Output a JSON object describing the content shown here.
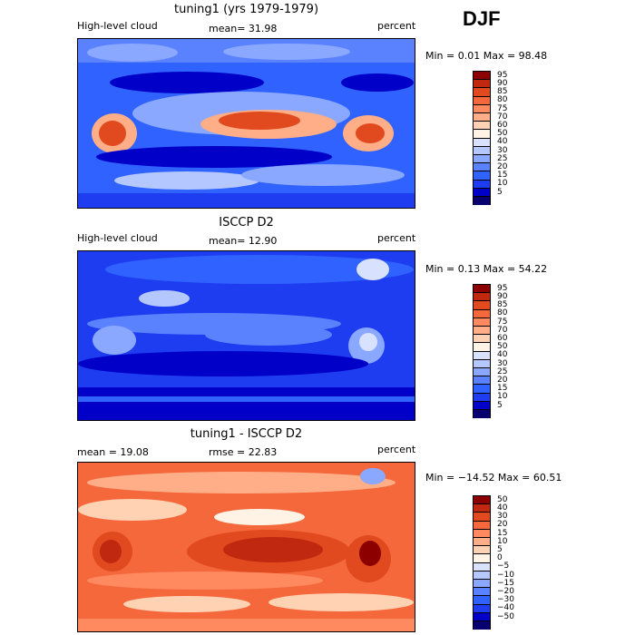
{
  "season": "DJF",
  "colors": {
    "scale": [
      "#08006e",
      "#0000c8",
      "#1e3cf0",
      "#2f62ff",
      "#5a82ff",
      "#8aa8ff",
      "#b4c8ff",
      "#d8e2ff",
      "#fff3e6",
      "#ffd2b4",
      "#ffae87",
      "#ff8a5f",
      "#f5683c",
      "#e04a1e",
      "#c02810",
      "#8c0000"
    ]
  },
  "panels": [
    {
      "title": "tuning1 (yrs 1979-1979)",
      "left": "High-level cloud",
      "center": "mean=   31.98",
      "right": "percent",
      "stats": "Min =    0.01 Max =   98.48",
      "levels": [
        "95",
        "90",
        "85",
        "80",
        "75",
        "70",
        "60",
        "50",
        "40",
        "30",
        "25",
        "20",
        "15",
        "10",
        "5"
      ],
      "field": "cloud-model"
    },
    {
      "title": "ISCCP D2",
      "left": "High-level cloud",
      "center": "mean=   12.90",
      "right": "percent",
      "stats": "Min =    0.13 Max =   54.22",
      "levels": [
        "95",
        "90",
        "85",
        "80",
        "75",
        "70",
        "60",
        "50",
        "40",
        "30",
        "25",
        "20",
        "15",
        "10",
        "5"
      ],
      "field": "cloud-obs"
    },
    {
      "title": "tuning1 - ISCCP D2",
      "left": "mean =   19.08",
      "center": "rmse =   22.83",
      "right": "percent",
      "stats": "Min = −14.52 Max =   60.51",
      "levels": [
        "50",
        "40",
        "30",
        "20",
        "15",
        "10",
        "5",
        "0",
        "−5",
        "−10",
        "−15",
        "−20",
        "−30",
        "−40",
        "−50"
      ],
      "field": "difference"
    }
  ]
}
